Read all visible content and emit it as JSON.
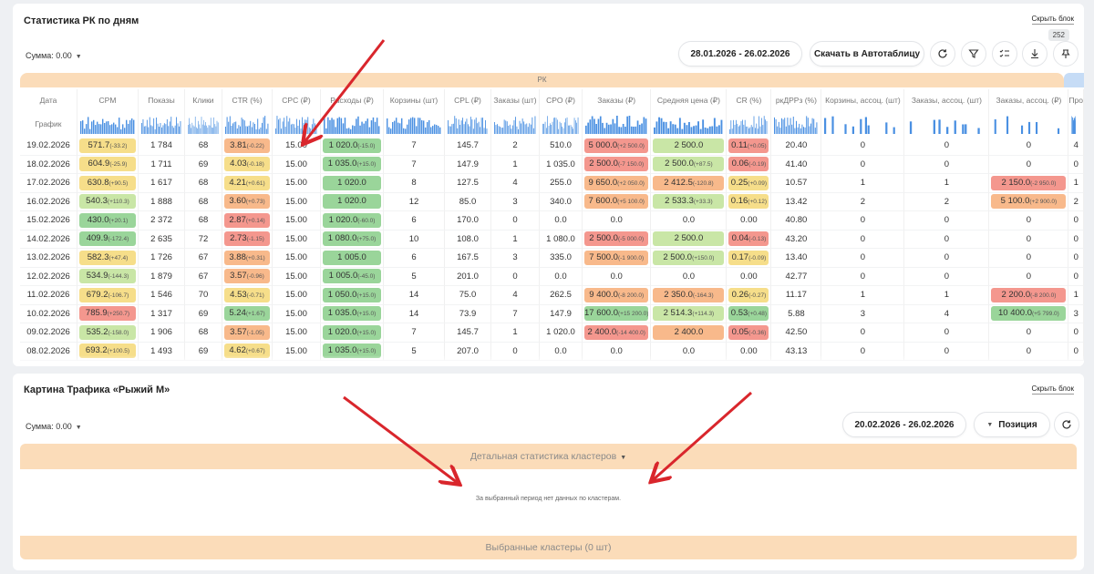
{
  "panel1": {
    "title": "Статистика РК по дням",
    "hide_label": "Скрыть блок",
    "tooltip": "252",
    "sum_label": "Сумма: 0.00",
    "date_range": "28.01.2026 - 26.02.2026",
    "export_label": "Скачать в Автотаблицу",
    "group_label": "РК",
    "graph_label": "График",
    "columns": [
      "Дата",
      "CPM",
      "Показы",
      "Клики",
      "CTR (%)",
      "CPC (₽)",
      "Расходы (₽)",
      "Корзины (шт)",
      "CPL (₽)",
      "Заказы (шт)",
      "CPO (₽)",
      "Заказы (₽)",
      "Средняя цена (₽)",
      "CR (%)",
      "ркДРРз (%)",
      "Корзины, ассоц. (шт)",
      "Заказы, ассоц. (шт)",
      "Заказы, ассоц. (₽)",
      "Про"
    ],
    "rows": [
      [
        "19.02.2026",
        [
          "571.7",
          "(-33.2)",
          "y"
        ],
        "1 784",
        "68",
        [
          "3.81",
          "(-0.22)",
          "o"
        ],
        "15.00",
        [
          "1 020.0",
          "(-15.0)",
          "g"
        ],
        "7",
        "145.7",
        "2",
        "510.0",
        [
          "5 000.0",
          "(+2 500.0)",
          "r"
        ],
        [
          "2 500.0",
          "",
          "lg"
        ],
        [
          "0.11",
          "(+0.05)",
          "r"
        ],
        "20.40",
        "0",
        "0",
        "0",
        "4"
      ],
      [
        "18.02.2026",
        [
          "604.9",
          "(-25.9)",
          "y"
        ],
        "1 711",
        "69",
        [
          "4.03",
          "(-0.18)",
          "y"
        ],
        "15.00",
        [
          "1 035.0",
          "(+15.0)",
          "g"
        ],
        "7",
        "147.9",
        "1",
        "1 035.0",
        [
          "2 500.0",
          "(-7 150.0)",
          "r"
        ],
        [
          "2 500.0",
          "(+87.5)",
          "lg"
        ],
        [
          "0.06",
          "(-0.19)",
          "r"
        ],
        "41.40",
        "0",
        "0",
        "0",
        "0"
      ],
      [
        "17.02.2026",
        [
          "630.8",
          "(+90.5)",
          "y"
        ],
        "1 617",
        "68",
        [
          "4.21",
          "(+0.61)",
          "y"
        ],
        "15.00",
        [
          "1 020.0",
          "",
          "g"
        ],
        "8",
        "127.5",
        "4",
        "255.0",
        [
          "9 650.0",
          "(+2 050.0)",
          "o"
        ],
        [
          "2 412.5",
          "(-120.8)",
          "o"
        ],
        [
          "0.25",
          "(+0.09)",
          "y"
        ],
        "10.57",
        "1",
        "1",
        [
          "2 150.0",
          "(-2 950.0)",
          "r"
        ],
        "1"
      ],
      [
        "16.02.2026",
        [
          "540.3",
          "(+110.3)",
          "lg"
        ],
        "1 888",
        "68",
        [
          "3.60",
          "(+0.73)",
          "o"
        ],
        "15.00",
        [
          "1 020.0",
          "",
          "g"
        ],
        "12",
        "85.0",
        "3",
        "340.0",
        [
          "7 600.0",
          "(+5 100.0)",
          "o"
        ],
        [
          "2 533.3",
          "(+33.3)",
          "lg"
        ],
        [
          "0.16",
          "(+0.12)",
          "y"
        ],
        "13.42",
        "2",
        "2",
        [
          "5 100.0",
          "(+2 900.0)",
          "o"
        ],
        "2"
      ],
      [
        "15.02.2026",
        [
          "430.0",
          "(+20.1)",
          "g"
        ],
        "2 372",
        "68",
        [
          "2.87",
          "(+0.14)",
          "r"
        ],
        "15.00",
        [
          "1 020.0",
          "(-60.0)",
          "g"
        ],
        "6",
        "170.0",
        "0",
        "0.0",
        "0.0",
        "0.0",
        "0.00",
        "40.80",
        "0",
        "0",
        "0",
        "0"
      ],
      [
        "14.02.2026",
        [
          "409.9",
          "(-172.4)",
          "g"
        ],
        "2 635",
        "72",
        [
          "2.73",
          "(-1.15)",
          "r"
        ],
        "15.00",
        [
          "1 080.0",
          "(+75.0)",
          "g"
        ],
        "10",
        "108.0",
        "1",
        "1 080.0",
        [
          "2 500.0",
          "(-5 000.0)",
          "r"
        ],
        [
          "2 500.0",
          "",
          "lg"
        ],
        [
          "0.04",
          "(-0.13)",
          "r"
        ],
        "43.20",
        "0",
        "0",
        "0",
        "0"
      ],
      [
        "13.02.2026",
        [
          "582.3",
          "(+47.4)",
          "y"
        ],
        "1 726",
        "67",
        [
          "3.88",
          "(+0.31)",
          "o"
        ],
        "15.00",
        [
          "1 005.0",
          "",
          "g"
        ],
        "6",
        "167.5",
        "3",
        "335.0",
        [
          "7 500.0",
          "(-1 900.0)",
          "o"
        ],
        [
          "2 500.0",
          "(+150.0)",
          "lg"
        ],
        [
          "0.17",
          "(-0.09)",
          "y"
        ],
        "13.40",
        "0",
        "0",
        "0",
        "0"
      ],
      [
        "12.02.2026",
        [
          "534.9",
          "(-144.3)",
          "lg"
        ],
        "1 879",
        "67",
        [
          "3.57",
          "(-0.96)",
          "o"
        ],
        "15.00",
        [
          "1 005.0",
          "(-45.0)",
          "g"
        ],
        "5",
        "201.0",
        "0",
        "0.0",
        "0.0",
        "0.0",
        "0.00",
        "42.77",
        "0",
        "0",
        "0",
        "0"
      ],
      [
        "11.02.2026",
        [
          "679.2",
          "(-106.7)",
          "y"
        ],
        "1 546",
        "70",
        [
          "4.53",
          "(-0.71)",
          "y"
        ],
        "15.00",
        [
          "1 050.0",
          "(+15.0)",
          "g"
        ],
        "14",
        "75.0",
        "4",
        "262.5",
        [
          "9 400.0",
          "(-8 200.0)",
          "o"
        ],
        [
          "2 350.0",
          "(-164.3)",
          "o"
        ],
        [
          "0.26",
          "(-0.27)",
          "y"
        ],
        "11.17",
        "1",
        "1",
        [
          "2 200.0",
          "(-8 200.0)",
          "r"
        ],
        "1"
      ],
      [
        "10.02.2026",
        [
          "785.9",
          "(+250.7)",
          "r"
        ],
        "1 317",
        "69",
        [
          "5.24",
          "(+1.67)",
          "g"
        ],
        "15.00",
        [
          "1 035.0",
          "(+15.0)",
          "g"
        ],
        "14",
        "73.9",
        "7",
        "147.9",
        [
          "17 600.0",
          "(+15 200.0)",
          "g"
        ],
        [
          "2 514.3",
          "(+114.3)",
          "lg"
        ],
        [
          "0.53",
          "(+0.48)",
          "g"
        ],
        "5.88",
        "3",
        "4",
        [
          "10 400.0",
          "(+5 799.0)",
          "g"
        ],
        "3"
      ],
      [
        "09.02.2026",
        [
          "535.2",
          "(-158.0)",
          "lg"
        ],
        "1 906",
        "68",
        [
          "3.57",
          "(-1.05)",
          "o"
        ],
        "15.00",
        [
          "1 020.0",
          "(+15.0)",
          "g"
        ],
        "7",
        "145.7",
        "1",
        "1 020.0",
        [
          "2 400.0",
          "(-14 400.0)",
          "r"
        ],
        [
          "2 400.0",
          "",
          "o"
        ],
        [
          "0.05",
          "(-0.36)",
          "r"
        ],
        "42.50",
        "0",
        "0",
        "0",
        "0"
      ],
      [
        "08.02.2026",
        [
          "693.2",
          "(+100.5)",
          "y"
        ],
        "1 493",
        "69",
        [
          "4.62",
          "(+0.67)",
          "y"
        ],
        "15.00",
        [
          "1 035.0",
          "(+15.0)",
          "g"
        ],
        "5",
        "207.0",
        "0",
        "0.0",
        "0.0",
        "0.0",
        "0.00",
        "43.13",
        "0",
        "0",
        "0",
        "0"
      ]
    ]
  },
  "panel2": {
    "title": "Картина Трафика «Рыжий М»",
    "hide_label": "Скрыть блок",
    "sum_label": "Сумма: 0.00",
    "date_range": "20.02.2026 - 26.02.2026",
    "position_label": "Позиция",
    "clusters_header": "Детальная статистика кластеров",
    "no_data": "За выбранный период нет данных по кластерам.",
    "selected_label": "Выбранные кластеры (0 шт)"
  },
  "colors": {
    "red": "#f4978e",
    "orange": "#f8b98b",
    "yellow": "#f6de8a",
    "green": "#9ad59a",
    "band": "#fbdcb9",
    "spark": "#4a90e2",
    "arrow": "#d9262c"
  },
  "icons": [
    "refresh-icon",
    "filter-icon",
    "columns-settings-icon",
    "download-icon",
    "pin-icon",
    "chevron-down-icon"
  ]
}
